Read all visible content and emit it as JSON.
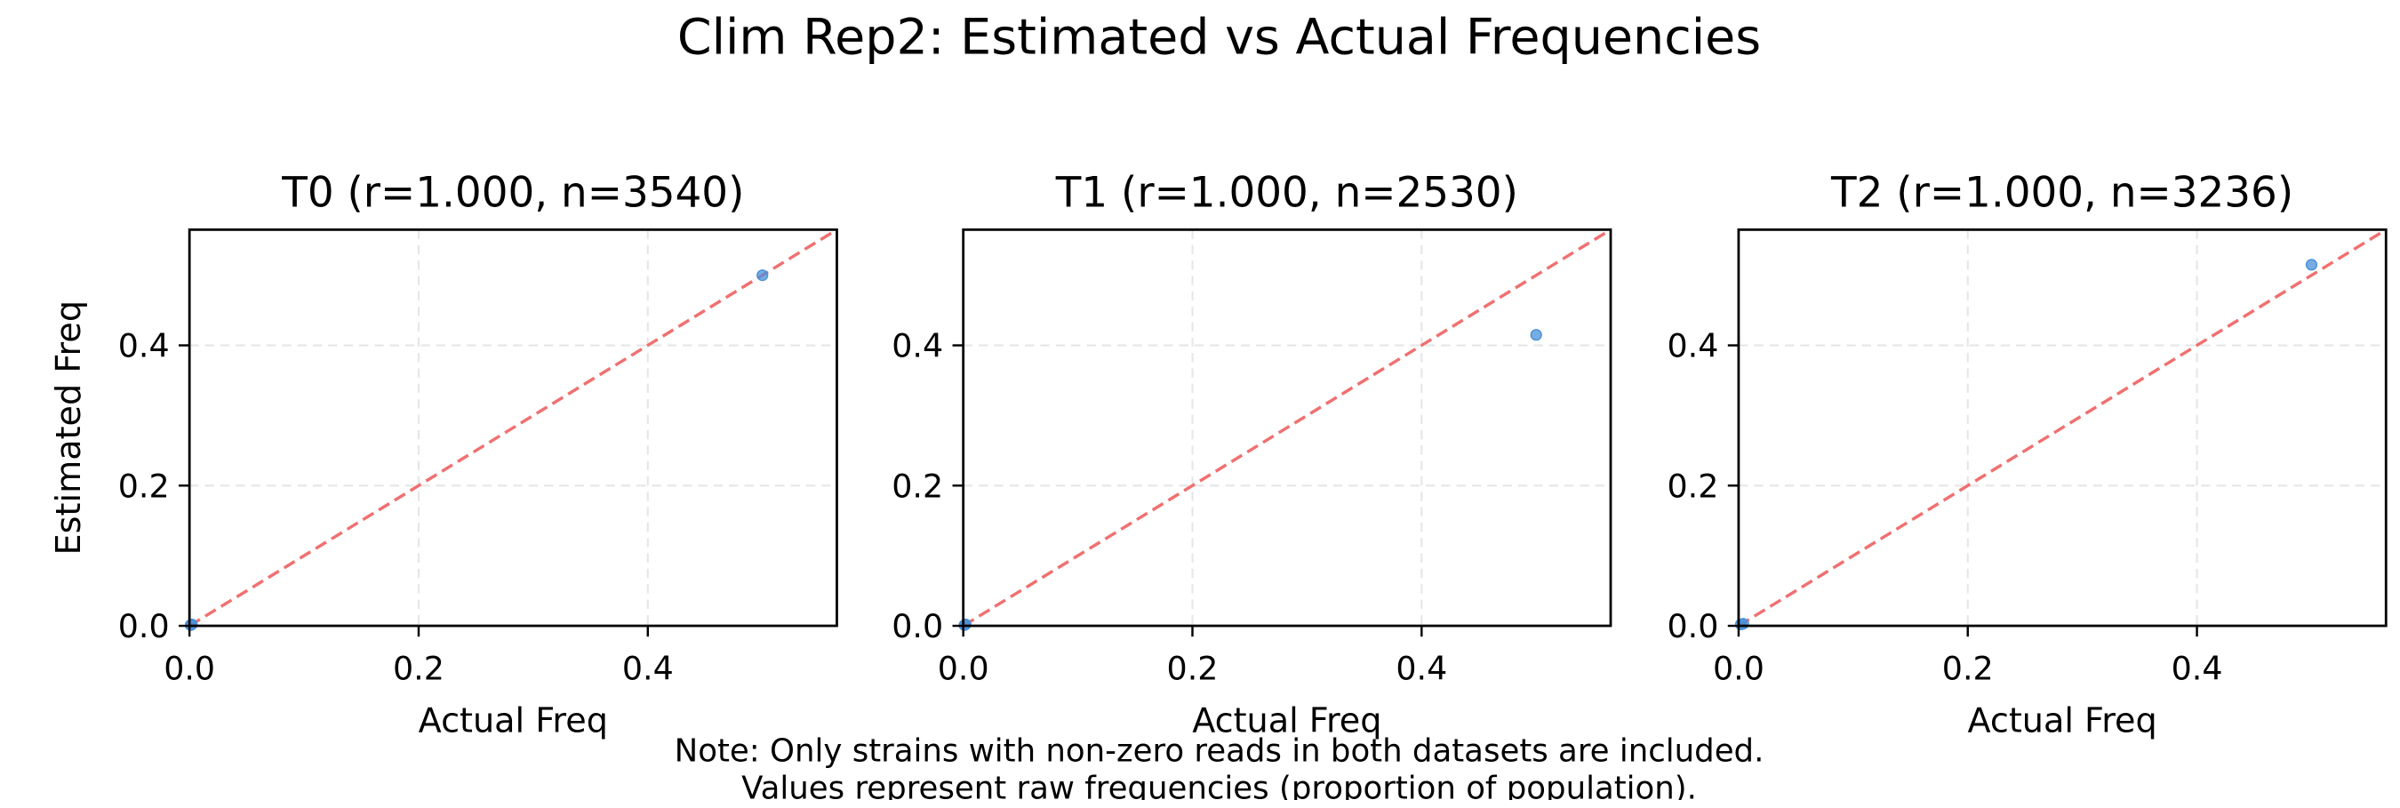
{
  "figure": {
    "title": "Clim Rep2: Estimated vs Actual Frequencies",
    "note_lines": [
      "Note: Only strains with non-zero reads in both datasets are included.",
      "Values represent raw frequencies (proportion of population)."
    ]
  },
  "colors": {
    "points": "#4a90d9",
    "identity_line": "#f07070",
    "grid": "#e6e6e6",
    "axes": "#000000"
  },
  "chart_data": [
    {
      "type": "scatter",
      "title": "T0 (r=1.000, n=3540)",
      "xlabel": "Actual Freq",
      "ylabel": "Estimated Freq",
      "xlim": [
        0,
        0.565
      ],
      "ylim": [
        0,
        0.565
      ],
      "xticks": [
        0.0,
        0.2,
        0.4
      ],
      "yticks": [
        0.0,
        0.2,
        0.4
      ],
      "grid": true,
      "identity_line": true,
      "points": [
        {
          "x": 0.5,
          "y": 0.5
        },
        {
          "x": 0.002,
          "y": 0.002
        },
        {
          "x": 0.001,
          "y": 0.001
        }
      ]
    },
    {
      "type": "scatter",
      "title": "T1 (r=1.000, n=2530)",
      "xlabel": "Actual Freq",
      "ylabel": "",
      "xlim": [
        0,
        0.565
      ],
      "ylim": [
        0,
        0.565
      ],
      "xticks": [
        0.0,
        0.2,
        0.4
      ],
      "yticks": [
        0.0,
        0.2,
        0.4
      ],
      "grid": true,
      "identity_line": true,
      "points": [
        {
          "x": 0.5,
          "y": 0.415
        },
        {
          "x": 0.002,
          "y": 0.002
        },
        {
          "x": 0.001,
          "y": 0.001
        }
      ]
    },
    {
      "type": "scatter",
      "title": "T2 (r=1.000, n=3236)",
      "xlabel": "Actual Freq",
      "ylabel": "",
      "xlim": [
        0,
        0.565
      ],
      "ylim": [
        0,
        0.565
      ],
      "xticks": [
        0.0,
        0.2,
        0.4
      ],
      "yticks": [
        0.0,
        0.2,
        0.4
      ],
      "grid": true,
      "identity_line": true,
      "points": [
        {
          "x": 0.5,
          "y": 0.515
        },
        {
          "x": 0.004,
          "y": 0.003
        },
        {
          "x": 0.002,
          "y": 0.002
        }
      ]
    }
  ]
}
